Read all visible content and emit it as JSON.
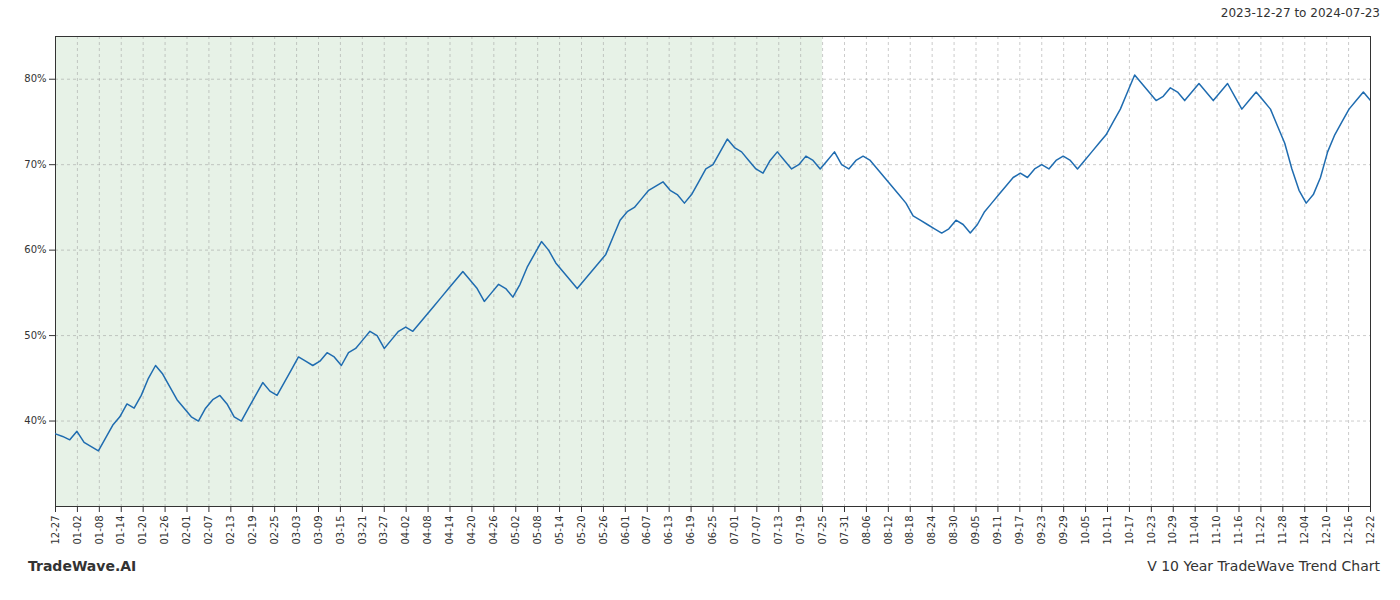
{
  "chart_data": {
    "type": "line",
    "title": "V 10 Year TradeWave Trend Chart",
    "subtitle": "2023-12-27 to 2024-07-23",
    "caption": "TradeWave.AI",
    "color": "#1f6cb0",
    "grid": true,
    "shade": {
      "x": [
        0,
        107.33333333333333
      ],
      "color": "#d4e8d4"
    },
    "xlim": [
      0,
      184
    ],
    "xticks": [
      {
        "value": 0,
        "label": "12-27"
      },
      {
        "value": 3.066666666666667,
        "label": "01-02"
      },
      {
        "value": 6.133333333333334,
        "label": "01-08"
      },
      {
        "value": 9.2,
        "label": "01-14"
      },
      {
        "value": 12.266666666666667,
        "label": "01-20"
      },
      {
        "value": 15.333333333333334,
        "label": "01-26"
      },
      {
        "value": 18.4,
        "label": "02-01"
      },
      {
        "value": 21.46666666666667,
        "label": "02-07"
      },
      {
        "value": 24.533333333333335,
        "label": "02-13"
      },
      {
        "value": 27.6,
        "label": "02-19"
      },
      {
        "value": 30.666666666666668,
        "label": "02-25"
      },
      {
        "value": 33.733333333333334,
        "label": "03-03"
      },
      {
        "value": 36.8,
        "label": "03-09"
      },
      {
        "value": 39.86666666666667,
        "label": "03-15"
      },
      {
        "value": 42.93333333333333,
        "label": "03-21"
      },
      {
        "value": 46,
        "label": "03-27"
      },
      {
        "value": 49.06666666666667,
        "label": "04-02"
      },
      {
        "value": 52.13333333333333,
        "label": "04-08"
      },
      {
        "value": 55.2,
        "label": "04-14"
      },
      {
        "value": 58.266666666666666,
        "label": "04-20"
      },
      {
        "value": 61.333333333333336,
        "label": "04-26"
      },
      {
        "value": 64.4,
        "label": "05-02"
      },
      {
        "value": 67.46666666666667,
        "label": "05-08"
      },
      {
        "value": 70.53333333333333,
        "label": "05-14"
      },
      {
        "value": 73.6,
        "label": "05-20"
      },
      {
        "value": 76.66666666666667,
        "label": "05-26"
      },
      {
        "value": 79.73333333333333,
        "label": "06-01"
      },
      {
        "value": 82.8,
        "label": "06-07"
      },
      {
        "value": 85.86666666666666,
        "label": "06-13"
      },
      {
        "value": 88.93333333333334,
        "label": "06-19"
      },
      {
        "value": 92,
        "label": "06-25"
      },
      {
        "value": 95.06666666666666,
        "label": "07-01"
      },
      {
        "value": 98.13333333333334,
        "label": "07-07"
      },
      {
        "value": 101.2,
        "label": "07-13"
      },
      {
        "value": 104.26666666666667,
        "label": "07-19"
      },
      {
        "value": 107.33333333333333,
        "label": "07-25"
      },
      {
        "value": 110.4,
        "label": "07-31"
      },
      {
        "value": 113.46666666666667,
        "label": "08-06"
      },
      {
        "value": 116.53333333333333,
        "label": "08-12"
      },
      {
        "value": 119.6,
        "label": "08-18"
      },
      {
        "value": 122.66666666666667,
        "label": "08-24"
      },
      {
        "value": 125.73333333333333,
        "label": "08-30"
      },
      {
        "value": 128.8,
        "label": "09-05"
      },
      {
        "value": 131.86666666666667,
        "label": "09-11"
      },
      {
        "value": 134.93333333333334,
        "label": "09-17"
      },
      {
        "value": 138,
        "label": "09-23"
      },
      {
        "value": 141.06666666666666,
        "label": "09-29"
      },
      {
        "value": 144.13333333333333,
        "label": "10-05"
      },
      {
        "value": 147.2,
        "label": "10-11"
      },
      {
        "value": 150.26666666666668,
        "label": "10-17"
      },
      {
        "value": 153.33333333333334,
        "label": "10-23"
      },
      {
        "value": 156.4,
        "label": "10-29"
      },
      {
        "value": 159.46666666666667,
        "label": "11-04"
      },
      {
        "value": 162.53333333333333,
        "label": "11-10"
      },
      {
        "value": 165.6,
        "label": "11-16"
      },
      {
        "value": 168.66666666666666,
        "label": "11-22"
      },
      {
        "value": 171.73333333333332,
        "label": "11-28"
      },
      {
        "value": 174.8,
        "label": "12-04"
      },
      {
        "value": 177.86666666666667,
        "label": "12-10"
      },
      {
        "value": 180.93333333333334,
        "label": "12-16"
      },
      {
        "value": 184,
        "label": "12-22"
      }
    ],
    "ylim": [
      30,
      85
    ],
    "yticks": [
      {
        "value": 40,
        "label": "40%"
      },
      {
        "value": 50,
        "label": "50%"
      },
      {
        "value": 60,
        "label": "60%"
      },
      {
        "value": 70,
        "label": "70%"
      },
      {
        "value": 80,
        "label": "80%"
      }
    ],
    "values": [
      38.5,
      38.2,
      37.8,
      38.8,
      37.5,
      37.0,
      36.5,
      38.0,
      39.5,
      40.5,
      42.0,
      41.5,
      43.0,
      45.0,
      46.5,
      45.5,
      44.0,
      42.5,
      41.5,
      40.5,
      40.0,
      41.5,
      42.5,
      43.0,
      42.0,
      40.5,
      40.0,
      41.5,
      43.0,
      44.5,
      43.5,
      43.0,
      44.5,
      46.0,
      47.5,
      47.0,
      46.5,
      47.0,
      48.0,
      47.5,
      46.5,
      48.0,
      48.5,
      49.5,
      50.5,
      50.0,
      48.5,
      49.5,
      50.5,
      51.0,
      50.5,
      51.5,
      52.5,
      53.5,
      54.5,
      55.5,
      56.5,
      57.5,
      56.5,
      55.5,
      54.0,
      55.0,
      56.0,
      55.5,
      54.5,
      56.0,
      58.0,
      59.5,
      61.0,
      60.0,
      58.5,
      57.5,
      56.5,
      55.5,
      56.5,
      57.5,
      58.5,
      59.5,
      61.5,
      63.5,
      64.5,
      65.0,
      66.0,
      67.0,
      67.5,
      68.0,
      67.0,
      66.5,
      65.5,
      66.5,
      68.0,
      69.5,
      70.0,
      71.5,
      73.0,
      72.0,
      71.5,
      70.5,
      69.5,
      69.0,
      70.5,
      71.5,
      70.5,
      69.5,
      70.0,
      71.0,
      70.5,
      69.5,
      70.5,
      71.5,
      70.0,
      69.5,
      70.5,
      71.0,
      70.5,
      69.5,
      68.5,
      67.5,
      66.5,
      65.5,
      64.0,
      63.5,
      63.0,
      62.5,
      62.0,
      62.5,
      63.5,
      63.0,
      62.0,
      63.0,
      64.5,
      65.5,
      66.5,
      67.5,
      68.5,
      69.0,
      68.5,
      69.5,
      70.0,
      69.5,
      70.5,
      71.0,
      70.5,
      69.5,
      70.5,
      71.5,
      72.5,
      73.5,
      75.0,
      76.5,
      78.5,
      80.5,
      79.5,
      78.5,
      77.5,
      78.0,
      79.0,
      78.5,
      77.5,
      78.5,
      79.5,
      78.5,
      77.5,
      78.5,
      79.5,
      78.0,
      76.5,
      77.5,
      78.5,
      77.5,
      76.5,
      74.5,
      72.5,
      69.5,
      67.0,
      65.5,
      66.5,
      68.5,
      71.5,
      73.5,
      75.0,
      76.5,
      77.5,
      78.5,
      77.5
    ]
  }
}
